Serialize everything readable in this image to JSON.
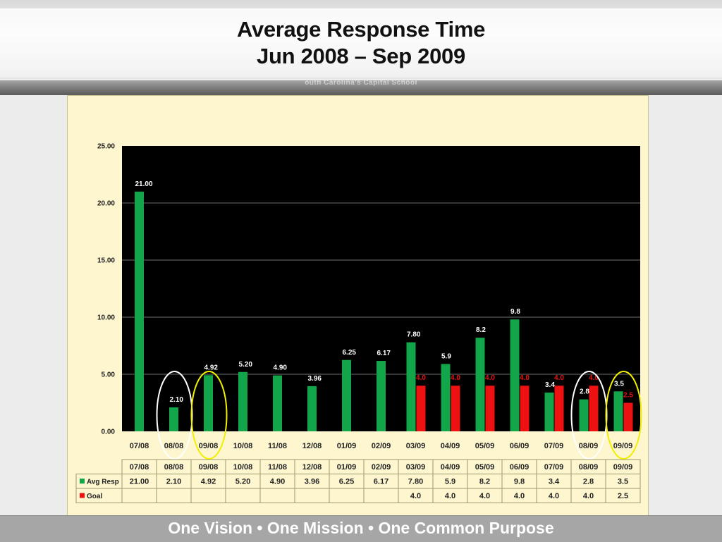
{
  "slide": {
    "title_line1": "Average Response Time",
    "title_line2": "Jun 2008 – Sep 2009",
    "banner_caption": "outh Carolina's Capital School",
    "footer": "One Vision • One Mission • One Common Purpose"
  },
  "chart_data": {
    "type": "bar",
    "title": "Average Response Time Jun 2008 – Sep 2009",
    "categories": [
      "07/08",
      "08/08",
      "09/08",
      "10/08",
      "11/08",
      "12/08",
      "01/09",
      "02/09",
      "03/09",
      "04/09",
      "05/09",
      "06/09",
      "07/09",
      "08/09",
      "09/09"
    ],
    "series": [
      {
        "name": "Avg Resp",
        "values": [
          21.0,
          2.1,
          4.92,
          5.2,
          4.9,
          3.96,
          6.25,
          6.17,
          7.8,
          5.9,
          8.2,
          9.8,
          3.4,
          2.8,
          3.5
        ],
        "labels": [
          "21.00",
          "2.10",
          "4.92",
          "5.20",
          "4.90",
          "3.96",
          "6.25",
          "6.17",
          "7.80",
          "5.9",
          "8.2",
          "9.8",
          "3.4",
          "2.8",
          "3.5"
        ],
        "color": "#12a54a"
      },
      {
        "name": "Goal",
        "values": [
          null,
          null,
          null,
          null,
          null,
          null,
          null,
          null,
          4.0,
          4.0,
          4.0,
          4.0,
          4.0,
          4.0,
          2.5
        ],
        "labels": [
          "",
          "",
          "",
          "",
          "",
          "",
          "",
          "",
          "4.0",
          "4.0",
          "4.0",
          "4.0",
          "4.0",
          "4.0",
          "2.5"
        ],
        "color": "#ee1111"
      }
    ],
    "ylim": [
      0,
      25
    ],
    "yticks": [
      "0.00",
      "5.00",
      "10.00",
      "15.00",
      "20.00",
      "25.00"
    ],
    "grid": true,
    "plot_background": "#000000",
    "data_table": true,
    "highlight_circles": [
      {
        "category": "08/08",
        "color": "#ffffff"
      },
      {
        "category": "09/08",
        "color": "#f0f000"
      },
      {
        "category": "08/09",
        "color": "#ffffff"
      },
      {
        "category": "09/09",
        "color": "#f0f000"
      }
    ]
  }
}
